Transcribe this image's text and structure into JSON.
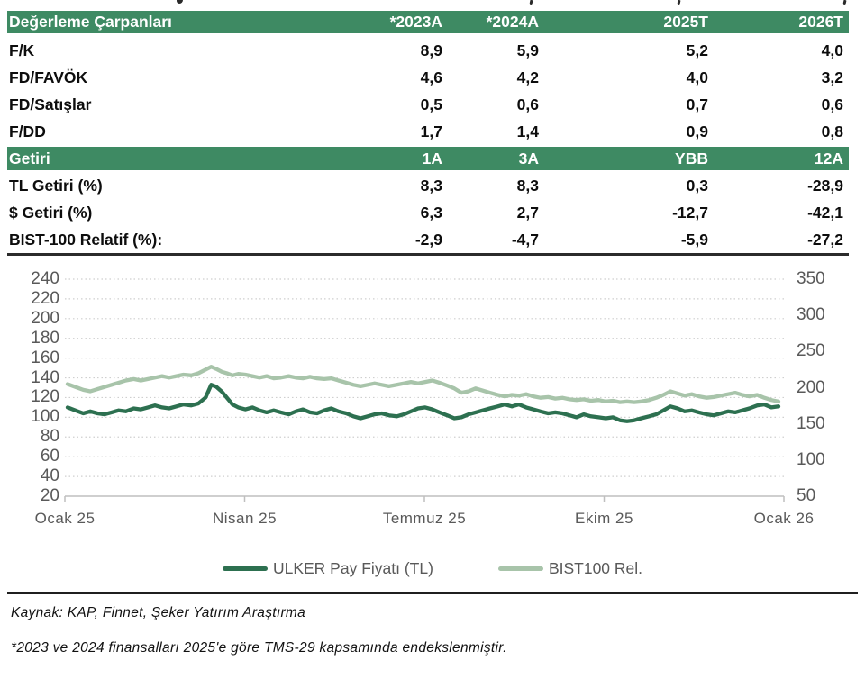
{
  "colors": {
    "header_green": "#3E8A63",
    "ulker_line": "#2D7050",
    "bist_line": "#A8C4AA",
    "axis_text": "#595959",
    "gridline": "#cfcfcf",
    "axis_line": "#bfbfbf"
  },
  "valuation_table": {
    "title": "Değerleme Çarpanları",
    "columns": [
      "*2023A",
      "*2024A",
      "2025T",
      "2026T"
    ],
    "rows": [
      {
        "label": "F/K",
        "values": [
          "8,9",
          "5,9",
          "5,2",
          "4,0"
        ]
      },
      {
        "label": "FD/FAVÖK",
        "values": [
          "4,6",
          "4,2",
          "4,0",
          "3,2"
        ]
      },
      {
        "label": "FD/Satışlar",
        "values": [
          "0,5",
          "0,6",
          "0,7",
          "0,6"
        ]
      },
      {
        "label": "F/DD",
        "values": [
          "1,7",
          "1,4",
          "0,9",
          "0,8"
        ]
      }
    ]
  },
  "returns_table": {
    "title": "Getiri",
    "columns": [
      "1A",
      "3A",
      "YBB",
      "12A"
    ],
    "rows": [
      {
        "label": "TL Getiri (%)",
        "values": [
          "8,3",
          "8,3",
          "0,3",
          "-28,9"
        ]
      },
      {
        "label": "$ Getiri (%)",
        "values": [
          "6,3",
          "2,7",
          "-12,7",
          "-42,1"
        ]
      },
      {
        "label": "BIST-100 Relatif (%):",
        "values": [
          "-2,9",
          "-4,7",
          "-5,9",
          "-27,2"
        ]
      }
    ]
  },
  "chart_data": {
    "type": "line",
    "title": "",
    "x_axis": {
      "labels": [
        "Ocak 25",
        "Nisan 25",
        "Temmuz 25",
        "Ekim 25",
        "Ocak 26"
      ]
    },
    "left_axis": {
      "min": 20,
      "max": 240,
      "ticks": [
        240,
        220,
        200,
        180,
        160,
        140,
        120,
        100,
        80,
        60,
        40,
        20
      ]
    },
    "right_axis": {
      "min": 50,
      "max": 350,
      "ticks": [
        350,
        300,
        250,
        200,
        150,
        100,
        50
      ]
    },
    "grid": "horizontal-dotted",
    "legend_position": "bottom",
    "series": [
      {
        "name": "ULKER Pay Fiyatı (TL)",
        "axis": "left",
        "color": "#2D7050",
        "points": [
          [
            0,
            110
          ],
          [
            0.011,
            107
          ],
          [
            0.022,
            104
          ],
          [
            0.032,
            106
          ],
          [
            0.042,
            104
          ],
          [
            0.052,
            103
          ],
          [
            0.062,
            105
          ],
          [
            0.072,
            107
          ],
          [
            0.082,
            106
          ],
          [
            0.093,
            109
          ],
          [
            0.103,
            108
          ],
          [
            0.113,
            110
          ],
          [
            0.123,
            112
          ],
          [
            0.133,
            110
          ],
          [
            0.143,
            109
          ],
          [
            0.153,
            111
          ],
          [
            0.163,
            113
          ],
          [
            0.174,
            112
          ],
          [
            0.184,
            114
          ],
          [
            0.194,
            120
          ],
          [
            0.202,
            133
          ],
          [
            0.209,
            131
          ],
          [
            0.217,
            126
          ],
          [
            0.224,
            120
          ],
          [
            0.232,
            113
          ],
          [
            0.24,
            110
          ],
          [
            0.25,
            108
          ],
          [
            0.26,
            110
          ],
          [
            0.27,
            107
          ],
          [
            0.28,
            105
          ],
          [
            0.29,
            107
          ],
          [
            0.3,
            105
          ],
          [
            0.311,
            103
          ],
          [
            0.321,
            106
          ],
          [
            0.331,
            108
          ],
          [
            0.341,
            105
          ],
          [
            0.351,
            104
          ],
          [
            0.361,
            107
          ],
          [
            0.371,
            109
          ],
          [
            0.381,
            106
          ],
          [
            0.392,
            104
          ],
          [
            0.402,
            101
          ],
          [
            0.412,
            99
          ],
          [
            0.422,
            101
          ],
          [
            0.432,
            103
          ],
          [
            0.442,
            104
          ],
          [
            0.452,
            102
          ],
          [
            0.463,
            101
          ],
          [
            0.473,
            103
          ],
          [
            0.483,
            106
          ],
          [
            0.493,
            109
          ],
          [
            0.503,
            110
          ],
          [
            0.513,
            108
          ],
          [
            0.523,
            105
          ],
          [
            0.534,
            102
          ],
          [
            0.544,
            99
          ],
          [
            0.554,
            100
          ],
          [
            0.564,
            103
          ],
          [
            0.574,
            105
          ],
          [
            0.584,
            107
          ],
          [
            0.594,
            109
          ],
          [
            0.605,
            111
          ],
          [
            0.615,
            113
          ],
          [
            0.625,
            111
          ],
          [
            0.635,
            113
          ],
          [
            0.645,
            110
          ],
          [
            0.655,
            108
          ],
          [
            0.665,
            106
          ],
          [
            0.676,
            104
          ],
          [
            0.686,
            105
          ],
          [
            0.696,
            104
          ],
          [
            0.706,
            102
          ],
          [
            0.716,
            100
          ],
          [
            0.726,
            103
          ],
          [
            0.736,
            101
          ],
          [
            0.747,
            100
          ],
          [
            0.757,
            99
          ],
          [
            0.767,
            100
          ],
          [
            0.777,
            97
          ],
          [
            0.787,
            96
          ],
          [
            0.797,
            97
          ],
          [
            0.807,
            99
          ],
          [
            0.818,
            101
          ],
          [
            0.828,
            103
          ],
          [
            0.838,
            107
          ],
          [
            0.848,
            111
          ],
          [
            0.858,
            109
          ],
          [
            0.868,
            106
          ],
          [
            0.878,
            107
          ],
          [
            0.888,
            105
          ],
          [
            0.899,
            103
          ],
          [
            0.909,
            102
          ],
          [
            0.919,
            104
          ],
          [
            0.929,
            106
          ],
          [
            0.939,
            105
          ],
          [
            0.949,
            107
          ],
          [
            0.959,
            109
          ],
          [
            0.97,
            112
          ],
          [
            0.98,
            113
          ],
          [
            0.99,
            110
          ],
          [
            1,
            111
          ]
        ]
      },
      {
        "name": "BIST100 Rel.",
        "axis": "right",
        "color": "#A8C4AA",
        "points": [
          [
            0,
            205
          ],
          [
            0.011,
            201
          ],
          [
            0.022,
            197
          ],
          [
            0.032,
            195
          ],
          [
            0.042,
            198
          ],
          [
            0.052,
            201
          ],
          [
            0.062,
            204
          ],
          [
            0.072,
            207
          ],
          [
            0.082,
            210
          ],
          [
            0.093,
            212
          ],
          [
            0.103,
            210
          ],
          [
            0.113,
            212
          ],
          [
            0.123,
            214
          ],
          [
            0.133,
            216
          ],
          [
            0.143,
            214
          ],
          [
            0.153,
            216
          ],
          [
            0.163,
            218
          ],
          [
            0.174,
            217
          ],
          [
            0.184,
            220
          ],
          [
            0.194,
            225
          ],
          [
            0.202,
            229
          ],
          [
            0.209,
            226
          ],
          [
            0.217,
            222
          ],
          [
            0.224,
            220
          ],
          [
            0.232,
            217
          ],
          [
            0.24,
            219
          ],
          [
            0.25,
            218
          ],
          [
            0.26,
            216
          ],
          [
            0.27,
            214
          ],
          [
            0.28,
            216
          ],
          [
            0.29,
            213
          ],
          [
            0.3,
            214
          ],
          [
            0.311,
            216
          ],
          [
            0.321,
            214
          ],
          [
            0.331,
            213
          ],
          [
            0.341,
            215
          ],
          [
            0.351,
            213
          ],
          [
            0.361,
            212
          ],
          [
            0.371,
            213
          ],
          [
            0.381,
            210
          ],
          [
            0.392,
            207
          ],
          [
            0.402,
            204
          ],
          [
            0.412,
            202
          ],
          [
            0.422,
            204
          ],
          [
            0.432,
            206
          ],
          [
            0.442,
            204
          ],
          [
            0.452,
            202
          ],
          [
            0.463,
            204
          ],
          [
            0.473,
            206
          ],
          [
            0.483,
            208
          ],
          [
            0.493,
            206
          ],
          [
            0.503,
            208
          ],
          [
            0.513,
            210
          ],
          [
            0.523,
            207
          ],
          [
            0.534,
            203
          ],
          [
            0.544,
            199
          ],
          [
            0.554,
            193
          ],
          [
            0.564,
            195
          ],
          [
            0.574,
            199
          ],
          [
            0.584,
            196
          ],
          [
            0.594,
            193
          ],
          [
            0.605,
            190
          ],
          [
            0.615,
            188
          ],
          [
            0.625,
            190
          ],
          [
            0.635,
            189
          ],
          [
            0.645,
            191
          ],
          [
            0.655,
            188
          ],
          [
            0.665,
            186
          ],
          [
            0.676,
            187
          ],
          [
            0.686,
            185
          ],
          [
            0.696,
            186
          ],
          [
            0.706,
            184
          ],
          [
            0.716,
            183
          ],
          [
            0.726,
            184
          ],
          [
            0.736,
            182
          ],
          [
            0.747,
            183
          ],
          [
            0.757,
            181
          ],
          [
            0.767,
            182
          ],
          [
            0.777,
            180
          ],
          [
            0.787,
            181
          ],
          [
            0.797,
            180
          ],
          [
            0.807,
            181
          ],
          [
            0.818,
            183
          ],
          [
            0.828,
            186
          ],
          [
            0.838,
            190
          ],
          [
            0.848,
            195
          ],
          [
            0.858,
            192
          ],
          [
            0.868,
            189
          ],
          [
            0.878,
            191
          ],
          [
            0.888,
            188
          ],
          [
            0.899,
            186
          ],
          [
            0.909,
            187
          ],
          [
            0.919,
            189
          ],
          [
            0.929,
            191
          ],
          [
            0.939,
            193
          ],
          [
            0.949,
            190
          ],
          [
            0.959,
            188
          ],
          [
            0.97,
            190
          ],
          [
            0.98,
            186
          ],
          [
            0.99,
            183
          ],
          [
            1,
            181
          ]
        ]
      }
    ]
  },
  "footer": {
    "source": "Kaynak: KAP, Finnet, Şeker Yatırım Araştırma",
    "footnote": "*2023 ve 2024 finansalları 2025'e göre TMS-29 kapsamında endekslenmiştir."
  }
}
